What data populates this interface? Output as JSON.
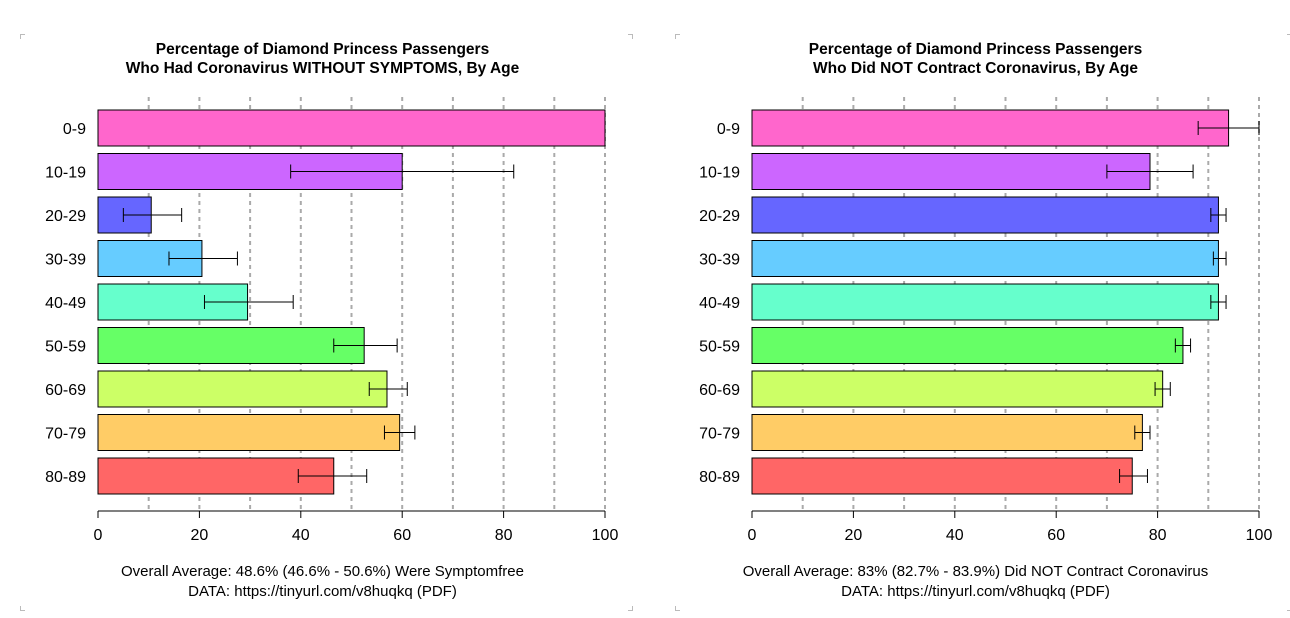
{
  "chart_data": [
    {
      "type": "bar",
      "orientation": "horizontal",
      "title": [
        "Percentage of Diamond Princess Passengers",
        "Who Had Coronavirus WITHOUT SYMPTOMS, By Age"
      ],
      "categories": [
        "0-9",
        "10-19",
        "20-29",
        "30-39",
        "40-49",
        "50-59",
        "60-69",
        "70-79",
        "80-89"
      ],
      "values": [
        100,
        60,
        10.5,
        20.5,
        29.5,
        52.5,
        57,
        59.5,
        46.5
      ],
      "error_low": [
        null,
        38,
        5,
        14,
        21,
        46.5,
        53.5,
        56.5,
        39.5
      ],
      "error_high": [
        null,
        82,
        16.5,
        27.5,
        38.5,
        59,
        61,
        62.5,
        53
      ],
      "colors": [
        "#ff66cc",
        "#cc66ff",
        "#6666ff",
        "#66ccff",
        "#66ffcc",
        "#66ff66",
        "#ccff66",
        "#ffcc66",
        "#ff6666"
      ],
      "xlim": [
        0,
        100
      ],
      "xticks": [
        0,
        20,
        40,
        60,
        80,
        100
      ],
      "grid": "vertical dashed every 10",
      "footer": [
        "Overall Average: 48.6% (46.6% - 50.6%) Were Symptomfree",
        "DATA: https://tinyurl.com/v8huqkq (PDF)"
      ]
    },
    {
      "type": "bar",
      "orientation": "horizontal",
      "title": [
        "Percentage of Diamond Princess Passengers",
        "Who Did NOT Contract Coronavirus, By Age"
      ],
      "categories": [
        "0-9",
        "10-19",
        "20-29",
        "30-39",
        "40-49",
        "50-59",
        "60-69",
        "70-79",
        "80-89"
      ],
      "values": [
        94,
        78.5,
        92,
        92,
        92,
        85,
        81,
        77,
        75
      ],
      "error_low": [
        88,
        70,
        90.5,
        91,
        90.5,
        83.5,
        79.5,
        75.5,
        72.5
      ],
      "error_high": [
        100,
        87,
        93.5,
        93.5,
        93.5,
        86.5,
        82.5,
        78.5,
        78
      ],
      "colors": [
        "#ff66cc",
        "#cc66ff",
        "#6666ff",
        "#66ccff",
        "#66ffcc",
        "#66ff66",
        "#ccff66",
        "#ffcc66",
        "#ff6666"
      ],
      "xlim": [
        0,
        100
      ],
      "xticks": [
        0,
        20,
        40,
        60,
        80,
        100
      ],
      "grid": "vertical dashed every 10",
      "footer": [
        "Overall Average: 83% (82.7% - 83.9%) Did NOT Contract Coronavirus",
        "DATA: https://tinyurl.com/v8huqkq (PDF)"
      ]
    }
  ]
}
